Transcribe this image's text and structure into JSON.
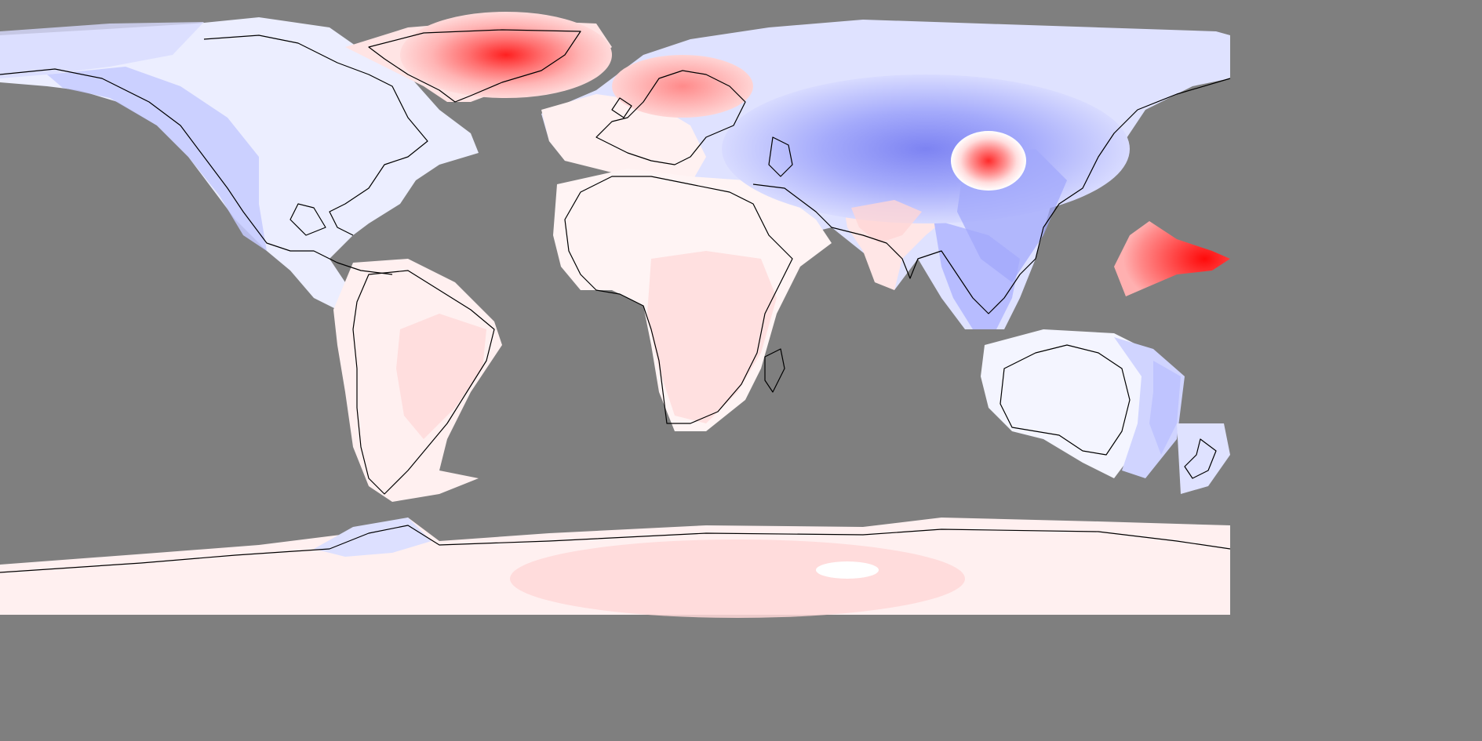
{
  "map": {
    "projection": "equirectangular",
    "colors": {
      "ocean_no_data": "#7f7f7f",
      "coastline": "#000000",
      "neutral": "#ffffff",
      "warm_light": "#ffe2e2",
      "warm_mid": "#ffaaaa",
      "warm_strong": "#ff2a2a",
      "cold_light": "#e8eaff",
      "cold_mid": "#b3b8ff",
      "cold_strong": "#7a80f5"
    },
    "features": [
      {
        "name": "greenland-warm-anomaly",
        "sign": "warm",
        "level": "strong"
      },
      {
        "name": "scandinavia-warm-anomaly",
        "sign": "warm",
        "level": "mid"
      },
      {
        "name": "mongolia-warm-anomaly",
        "sign": "warm",
        "level": "strong"
      },
      {
        "name": "western-pacific-warm-anomaly",
        "sign": "warm",
        "level": "strong"
      },
      {
        "name": "africa-warm-anomaly",
        "sign": "warm",
        "level": "light"
      },
      {
        "name": "south-america-warm-anomaly",
        "sign": "warm",
        "level": "light"
      },
      {
        "name": "india-warm-anomaly",
        "sign": "warm",
        "level": "light"
      },
      {
        "name": "antarctica-warm-anomaly",
        "sign": "warm",
        "level": "light"
      },
      {
        "name": "central-asia-cold-anomaly",
        "sign": "cold",
        "level": "strong"
      },
      {
        "name": "north-america-cold-anomaly",
        "sign": "cold",
        "level": "light"
      },
      {
        "name": "australia-cold-anomaly",
        "sign": "cold",
        "level": "light"
      }
    ]
  }
}
